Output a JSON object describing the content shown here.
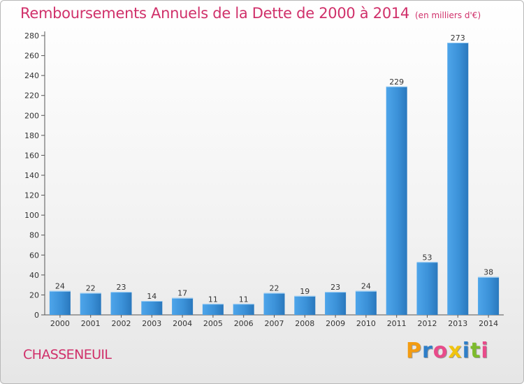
{
  "header": {
    "title": "Remboursements Annuels de la Dette de 2000 à 2014",
    "unit": "(en milliers d'€)"
  },
  "footer": {
    "commune": "CHASSENEUIL",
    "logo": {
      "letters": [
        "P",
        "r",
        "o",
        "x",
        "i",
        "t",
        "i"
      ],
      "colors": [
        "#f39c12",
        "#2e7ec8",
        "#e84b8a",
        "#f1c40f",
        "#2e7ec8",
        "#7dbb2c",
        "#e84b8a"
      ]
    }
  },
  "chart_data": {
    "type": "bar",
    "title": "Remboursements Annuels de la Dette de 2000 à 2014",
    "xlabel": "",
    "ylabel": "",
    "categories": [
      "2000",
      "2001",
      "2002",
      "2003",
      "2004",
      "2005",
      "2006",
      "2007",
      "2008",
      "2009",
      "2010",
      "2011",
      "2012",
      "2013",
      "2014"
    ],
    "values": [
      24,
      22,
      23,
      14,
      17,
      11,
      11,
      22,
      19,
      23,
      24,
      229,
      53,
      273,
      38
    ],
    "ylim": [
      0,
      280
    ],
    "yticks": [
      0,
      20,
      40,
      60,
      80,
      100,
      120,
      140,
      160,
      180,
      200,
      220,
      240,
      260,
      280
    ],
    "grid": false,
    "legend": "none",
    "bar_color": "#3a8fd6"
  }
}
